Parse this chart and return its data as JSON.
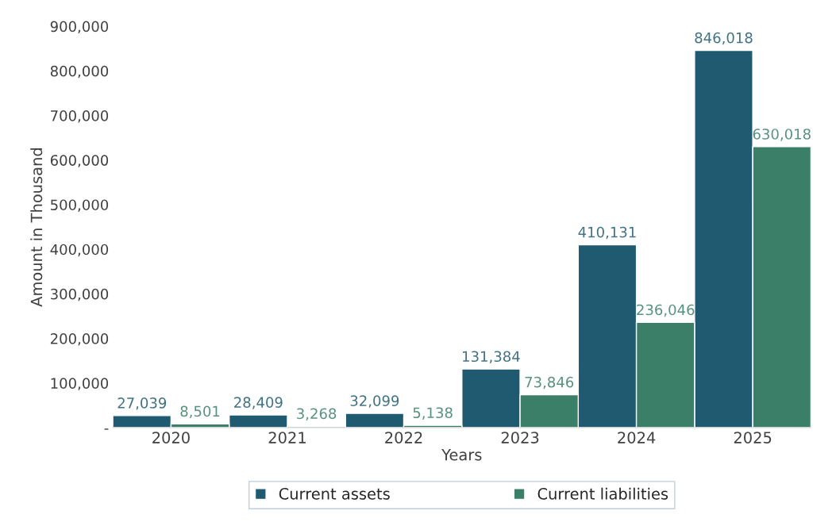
{
  "chart_data": {
    "type": "bar",
    "xlabel": "Years",
    "ylabel": "Amount in Thousand",
    "categories": [
      "2020",
      "2021",
      "2022",
      "2023",
      "2024",
      "2025"
    ],
    "series": [
      {
        "name": "Current assets",
        "color": "#1f5a70",
        "values": [
          27039,
          28409,
          32099,
          131384,
          410131,
          846018
        ],
        "value_labels": [
          "27,039",
          "28,409",
          "32,099",
          "131,384",
          "410,131",
          "846,018"
        ]
      },
      {
        "name": "Current liabilities",
        "color": "#3b7f68",
        "values": [
          8501,
          3268,
          5138,
          73846,
          236046,
          630018
        ],
        "value_labels": [
          "8,501",
          "3,268",
          "5,138",
          "73,846",
          "236,046",
          "630,018"
        ]
      }
    ],
    "ylim": [
      0,
      900000
    ],
    "yticks": [
      {
        "value": 0,
        "label": "-"
      },
      {
        "value": 100000,
        "label": "100,000"
      },
      {
        "value": 200000,
        "label": "200,000"
      },
      {
        "value": 300000,
        "label": "300,000"
      },
      {
        "value": 400000,
        "label": "400,000"
      },
      {
        "value": 500000,
        "label": "500,000"
      },
      {
        "value": 600000,
        "label": "600,000"
      },
      {
        "value": 700000,
        "label": "700,000"
      },
      {
        "value": 800000,
        "label": "800,000"
      },
      {
        "value": 900000,
        "label": "900,000"
      }
    ],
    "grid": false,
    "legend": "bottom"
  }
}
